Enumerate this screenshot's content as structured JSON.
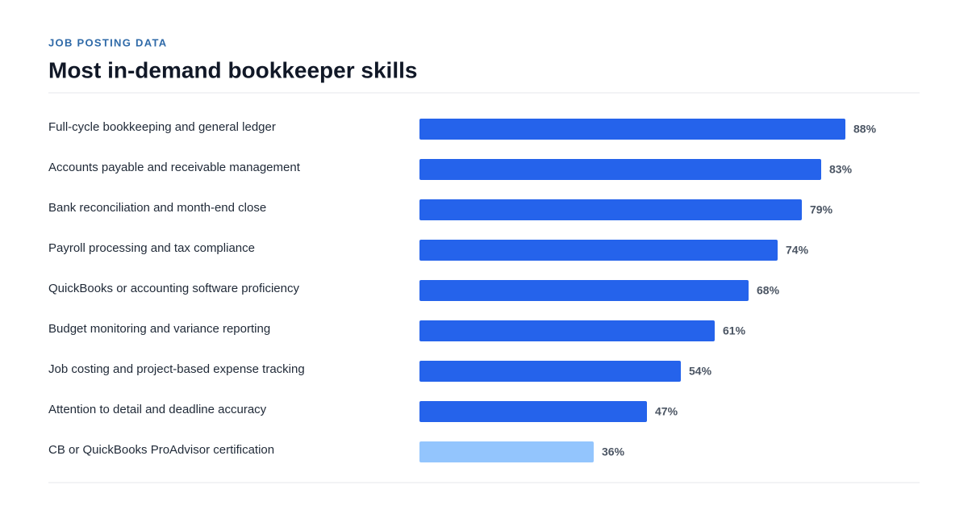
{
  "chart_data": {
    "type": "bar",
    "orientation": "horizontal",
    "subtitle": "JOB POSTING DATA",
    "title": "Most in-demand bookkeeper skills",
    "categories": [
      "Full-cycle bookkeeping and general ledger",
      "Accounts payable and receivable management",
      "Bank reconciliation and month-end close",
      "Payroll processing and tax compliance",
      "QuickBooks or accounting software proficiency",
      "Budget monitoring and variance reporting",
      "Job costing and project-based expense tracking",
      "Attention to detail and deadline accuracy",
      "CB or QuickBooks ProAdvisor certification"
    ],
    "values": [
      88,
      83,
      79,
      74,
      68,
      61,
      54,
      47,
      36
    ],
    "value_labels": [
      "88%",
      "83%",
      "79%",
      "74%",
      "68%",
      "61%",
      "54%",
      "47%",
      "36%"
    ],
    "colors": [
      "#2563eb",
      "#2563eb",
      "#2563eb",
      "#2563eb",
      "#2563eb",
      "#2563eb",
      "#2563eb",
      "#2563eb",
      "#93c5fd"
    ]
  }
}
